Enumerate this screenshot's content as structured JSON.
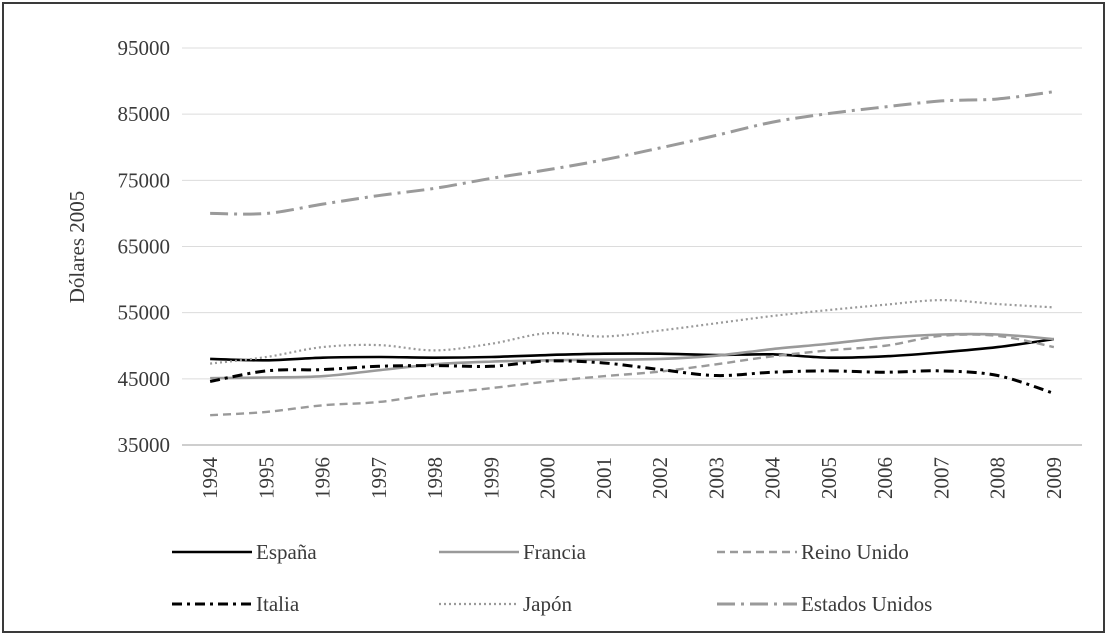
{
  "chart_data": {
    "type": "line",
    "title": "",
    "xlabel": "",
    "ylabel": "Dólares 2005",
    "ylim": [
      35000,
      95000
    ],
    "yticks": [
      "35000",
      "45000",
      "55000",
      "65000",
      "75000",
      "85000",
      "95000"
    ],
    "ytick_values": [
      35000,
      45000,
      55000,
      65000,
      75000,
      85000,
      95000
    ],
    "grid": true,
    "legend_placement": "bottom",
    "categories": [
      "1994",
      "1995",
      "1996",
      "1997",
      "1998",
      "1999",
      "2000",
      "2001",
      "2002",
      "2003",
      "2004",
      "2005",
      "2006",
      "2007",
      "2008",
      "2009"
    ],
    "series": [
      {
        "name": "España",
        "style": "solid",
        "color": "#000000",
        "values": [
          48000,
          47800,
          48200,
          48300,
          48200,
          48300,
          48600,
          48800,
          48800,
          48600,
          48700,
          48200,
          48400,
          49000,
          49800,
          51000
        ]
      },
      {
        "name": "Francia",
        "style": "solid",
        "color": "#9a9a9a",
        "values": [
          45100,
          45200,
          45400,
          46300,
          47200,
          47600,
          47800,
          47900,
          48000,
          48500,
          49500,
          50300,
          51200,
          51700,
          51700,
          51000
        ]
      },
      {
        "name": "Reino Unido",
        "style": "dash",
        "color": "#9a9a9a",
        "values": [
          39500,
          40000,
          41000,
          41500,
          42700,
          43600,
          44600,
          45400,
          46100,
          47200,
          48400,
          49300,
          50000,
          51500,
          51500,
          49800
        ]
      },
      {
        "name": "Italia",
        "style": "dashdot",
        "color": "#000000",
        "values": [
          44600,
          46200,
          46400,
          46900,
          47000,
          46900,
          47700,
          47400,
          46400,
          45500,
          46000,
          46200,
          46000,
          46200,
          45500,
          42800
        ]
      },
      {
        "name": "Japón",
        "style": "dot",
        "color": "#9a9a9a",
        "values": [
          47300,
          48300,
          49800,
          50100,
          49300,
          50300,
          51900,
          51400,
          52300,
          53400,
          54500,
          55400,
          56200,
          56900,
          56300,
          55800
        ]
      },
      {
        "name": "Estados Unidos",
        "style": "longdashdot",
        "color": "#9a9a9a",
        "values": [
          70000,
          70000,
          71400,
          72700,
          73800,
          75300,
          76600,
          78100,
          79900,
          81800,
          83800,
          85100,
          86100,
          87000,
          87300,
          88400
        ]
      }
    ]
  }
}
